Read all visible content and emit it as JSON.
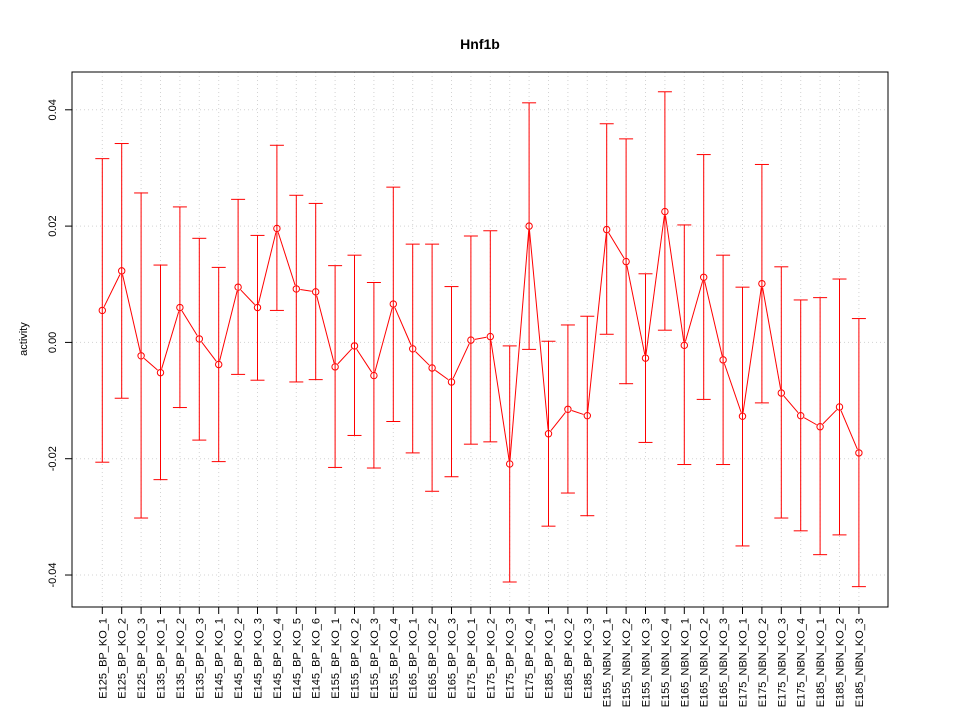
{
  "chart_data": {
    "type": "line",
    "title": "Hnf1b",
    "xlabel": "",
    "ylabel": "activity",
    "ylim": [
      -0.0455,
      0.0465
    ],
    "yticks": [
      -0.04,
      -0.02,
      0.0,
      0.02,
      0.04
    ],
    "ytick_labels": [
      "-0.04",
      "-0.02",
      "0.00",
      "0.02",
      "0.04"
    ],
    "grid": true,
    "color": "#ff0000",
    "categories": [
      "E125_BP_KO_1",
      "E125_BP_KO_2",
      "E125_BP_KO_3",
      "E135_BP_KO_1",
      "E135_BP_KO_2",
      "E135_BP_KO_3",
      "E145_BP_KO_1",
      "E145_BP_KO_2",
      "E145_BP_KO_3",
      "E145_BP_KO_4",
      "E145_BP_KO_5",
      "E145_BP_KO_6",
      "E155_BP_KO_1",
      "E155_BP_KO_2",
      "E155_BP_KO_3",
      "E155_BP_KO_4",
      "E165_BP_KO_1",
      "E165_BP_KO_2",
      "E165_BP_KO_3",
      "E175_BP_KO_1",
      "E175_BP_KO_2",
      "E175_BP_KO_3",
      "E175_BP_KO_4",
      "E185_BP_KO_1",
      "E185_BP_KO_2",
      "E185_BP_KO_3",
      "E155_NBN_KO_1",
      "E155_NBN_KO_2",
      "E155_NBN_KO_3",
      "E155_NBN_KO_4",
      "E165_NBN_KO_1",
      "E165_NBN_KO_2",
      "E165_NBN_KO_3",
      "E175_NBN_KO_1",
      "E175_NBN_KO_2",
      "E175_NBN_KO_3",
      "E175_NBN_KO_4",
      "E185_NBN_KO_1",
      "E185_NBN_KO_2",
      "E185_NBN_KO_3"
    ],
    "series": [
      {
        "values": [
          0.0055,
          0.0123,
          -0.0023,
          -0.0052,
          0.006,
          0.0006,
          -0.0038,
          0.0095,
          0.006,
          0.0196,
          0.0092,
          0.0087,
          -0.0042,
          -0.0006,
          -0.0057,
          0.0066,
          -0.0011,
          -0.0044,
          -0.0068,
          0.0004,
          0.001,
          -0.0209,
          0.02,
          -0.0157,
          -0.0115,
          -0.0126,
          0.0194,
          0.0139,
          -0.0027,
          0.0225,
          -0.0005,
          0.0112,
          -0.003,
          -0.0127,
          0.0101,
          -0.0087,
          -0.0126,
          -0.0145,
          -0.0111,
          -0.019
        ],
        "lower": [
          -0.0206,
          -0.0096,
          -0.0302,
          -0.0236,
          -0.0112,
          -0.0168,
          -0.0205,
          -0.0055,
          -0.0065,
          0.0055,
          -0.0068,
          -0.0064,
          -0.0215,
          -0.016,
          -0.0216,
          -0.0136,
          -0.019,
          -0.0256,
          -0.0231,
          -0.0175,
          -0.0171,
          -0.0412,
          -0.0012,
          -0.0316,
          -0.0259,
          -0.0298,
          0.0014,
          -0.0071,
          -0.0172,
          0.0021,
          -0.021,
          -0.0098,
          -0.021,
          -0.035,
          -0.0104,
          -0.0302,
          -0.0324,
          -0.0365,
          -0.0331,
          -0.042
        ],
        "upper": [
          0.0316,
          0.0342,
          0.0257,
          0.0133,
          0.0233,
          0.0179,
          0.0129,
          0.0246,
          0.0184,
          0.0339,
          0.0253,
          0.0239,
          0.0132,
          0.015,
          0.0103,
          0.0267,
          0.0169,
          0.0169,
          0.0096,
          0.0183,
          0.0192,
          -0.0006,
          0.0412,
          0.0002,
          0.003,
          0.0045,
          0.0376,
          0.035,
          0.0118,
          0.0431,
          0.0202,
          0.0323,
          0.015,
          0.0095,
          0.0306,
          0.013,
          0.0073,
          0.0077,
          0.0109,
          0.0041
        ]
      }
    ]
  }
}
